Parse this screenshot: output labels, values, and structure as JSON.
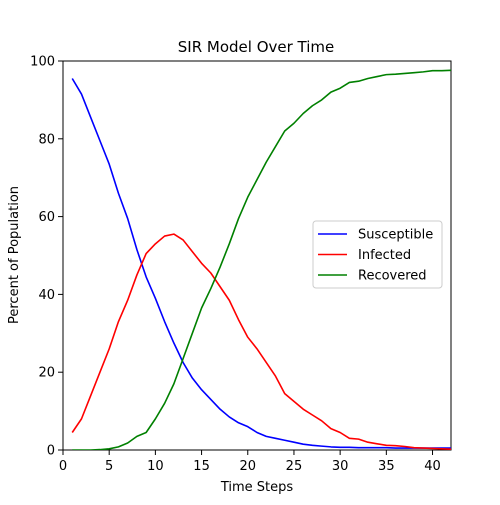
{
  "chart_data": {
    "type": "line",
    "title": "SIR Model Over Time",
    "xlabel": "Time Steps",
    "ylabel": "Percent of Population",
    "xlim": [
      0,
      42
    ],
    "ylim": [
      0,
      100
    ],
    "xticks": [
      0,
      5,
      10,
      15,
      20,
      25,
      30,
      35,
      40
    ],
    "yticks": [
      0,
      20,
      40,
      60,
      80,
      100
    ],
    "grid": false,
    "legend_position": "right",
    "x": [
      1,
      2,
      3,
      4,
      5,
      6,
      7,
      8,
      9,
      10,
      11,
      12,
      13,
      14,
      15,
      16,
      17,
      18,
      19,
      20,
      21,
      22,
      23,
      24,
      25,
      26,
      27,
      28,
      29,
      30,
      31,
      32,
      33,
      34,
      35,
      36,
      37,
      38,
      39,
      40,
      41,
      42
    ],
    "series": [
      {
        "name": "Susceptible",
        "color": "#0000ff",
        "values": [
          95.5,
          91.5,
          85.5,
          79.5,
          73.5,
          66.0,
          59.5,
          51.5,
          44.5,
          39.0,
          33.0,
          27.5,
          22.5,
          18.5,
          15.5,
          13.0,
          10.5,
          8.5,
          7.0,
          6.0,
          4.5,
          3.5,
          3.0,
          2.5,
          2.0,
          1.5,
          1.2,
          1.0,
          0.8,
          0.7,
          0.7,
          0.6,
          0.6,
          0.6,
          0.6,
          0.5,
          0.5,
          0.5,
          0.5,
          0.5,
          0.5,
          0.5
        ]
      },
      {
        "name": "Infected",
        "color": "#ff0000",
        "values": [
          4.5,
          8.0,
          14.0,
          20.0,
          26.0,
          33.0,
          38.5,
          45.0,
          50.5,
          53.0,
          55.0,
          55.5,
          54.0,
          51.0,
          48.0,
          45.5,
          42.0,
          38.5,
          33.5,
          29.0,
          26.0,
          22.5,
          19.0,
          14.5,
          12.5,
          10.5,
          9.0,
          7.5,
          5.5,
          4.5,
          3.0,
          2.8,
          2.0,
          1.6,
          1.2,
          1.1,
          0.9,
          0.6,
          0.5,
          0.4,
          0.3,
          0.2
        ]
      },
      {
        "name": "Recovered",
        "color": "#008000",
        "values": [
          0.0,
          0.0,
          0.0,
          0.1,
          0.3,
          0.8,
          1.8,
          3.5,
          4.5,
          8.0,
          12.0,
          17.0,
          23.5,
          30.0,
          36.5,
          41.5,
          47.0,
          53.0,
          59.5,
          65.0,
          69.5,
          74.0,
          78.0,
          82.0,
          84.0,
          86.5,
          88.5,
          90.0,
          92.0,
          93.0,
          94.5,
          94.8,
          95.5,
          96.0,
          96.5,
          96.6,
          96.8,
          97.0,
          97.2,
          97.5,
          97.5,
          97.6
        ]
      }
    ]
  }
}
